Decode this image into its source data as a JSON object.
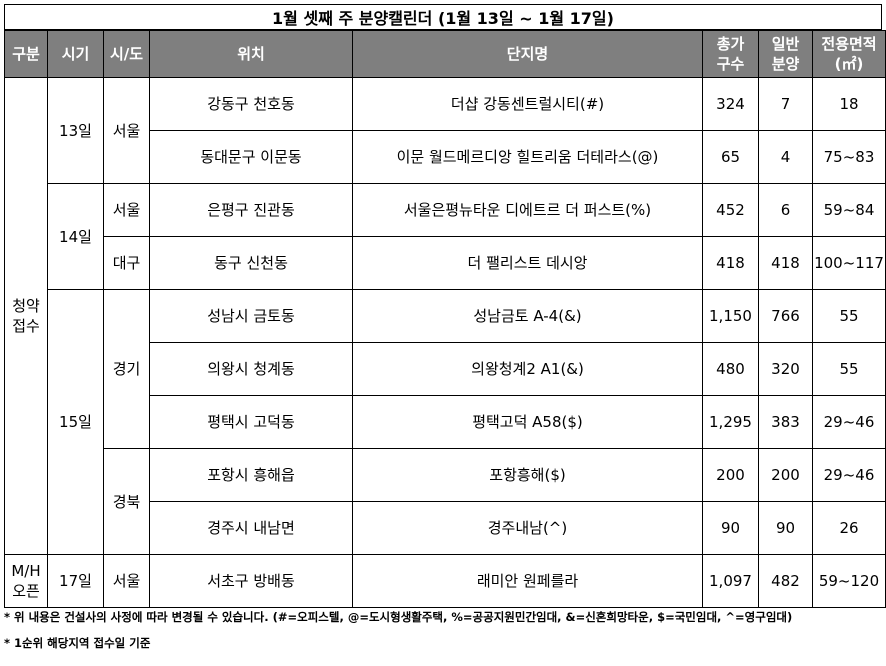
{
  "title": "1월 셋째 주 분양캘린더 (1월 13일 ~ 1월 17일)",
  "headers": {
    "category": "구분",
    "date": "시기",
    "region": "시/도",
    "location": "위치",
    "complex": "단지명",
    "total": [
      "총가",
      "구수"
    ],
    "general": [
      "일반",
      "분양"
    ],
    "area": [
      "전용면적",
      "(㎡)"
    ]
  },
  "groups": {
    "subscription": [
      "청약",
      "접수"
    ],
    "mh": [
      "M/H",
      "오픈"
    ]
  },
  "dates": {
    "d13": "13일",
    "d14": "14일",
    "d15": "15일",
    "d17": "17일"
  },
  "regions": {
    "seoul": "서울",
    "daegu": "대구",
    "gyeonggi": "경기",
    "gyeongbuk": "경북"
  },
  "rows": [
    {
      "location": "강동구 천호동",
      "complex": "더샵 강동센트럴시티(#)",
      "total": "324",
      "general": "7",
      "area": "18"
    },
    {
      "location": "동대문구 이문동",
      "complex": "이문 월드메르디앙 힐트리움 더테라스(@)",
      "total": "65",
      "general": "4",
      "area": "75~83"
    },
    {
      "location": "은평구 진관동",
      "complex": "서울은평뉴타운 디에트르 더 퍼스트(%)",
      "total": "452",
      "general": "6",
      "area": "59~84"
    },
    {
      "location": "동구 신천동",
      "complex": "더 팰리스트 데시앙",
      "total": "418",
      "general": "418",
      "area": "100~117"
    },
    {
      "location": "성남시 금토동",
      "complex": "성남금토 A-4(&)",
      "total": "1,150",
      "general": "766",
      "area": "55"
    },
    {
      "location": "의왕시 청계동",
      "complex": "의왕청계2 A1(&)",
      "total": "480",
      "general": "320",
      "area": "55"
    },
    {
      "location": "평택시 고덕동",
      "complex": "평택고덕 A58($)",
      "total": "1,295",
      "general": "383",
      "area": "29~46"
    },
    {
      "location": "포항시 흥해읍",
      "complex": "포항흥해($)",
      "total": "200",
      "general": "200",
      "area": "29~46"
    },
    {
      "location": "경주시 내남면",
      "complex": "경주내남(^)",
      "total": "90",
      "general": "90",
      "area": "26"
    },
    {
      "location": "서초구 방배동",
      "complex": "래미안 원페를라",
      "total": "1,097",
      "general": "482",
      "area": "59~120"
    }
  ],
  "notes": [
    "* 위 내용은 건설사의 사정에 따라 변경될 수 있습니다. (#=오피스텔, @=도시형생활주택, %=공공지원민간임대, &=신혼희망타운, $=국민임대, ^=영구임대)",
    "* 1순위 해당지역 접수일 기준"
  ]
}
